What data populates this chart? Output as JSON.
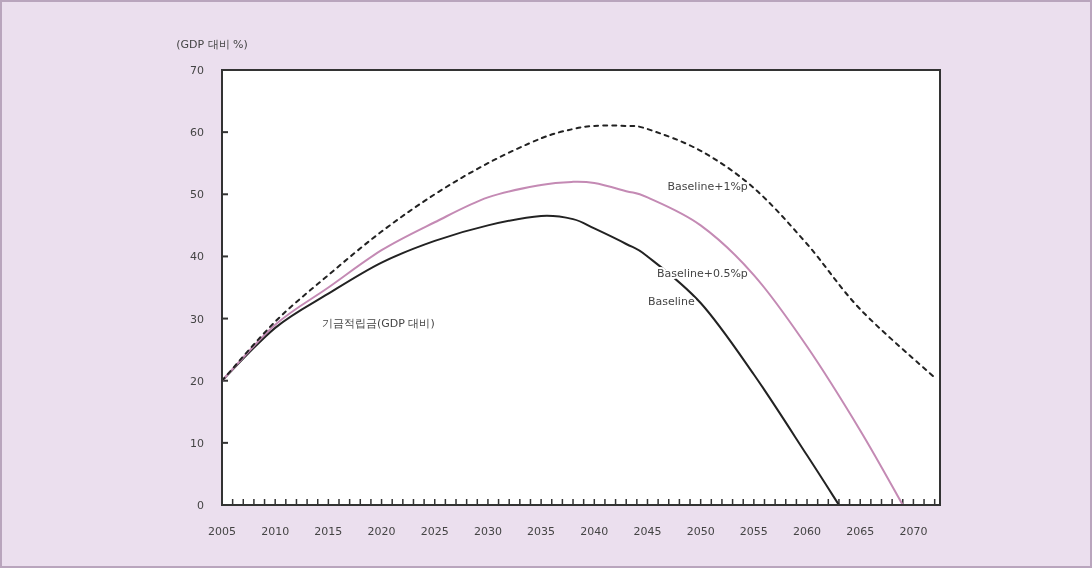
{
  "chart_data": {
    "type": "line",
    "ylabel": "(GDP 대비 %)",
    "x": [
      2005,
      2010,
      2015,
      2020,
      2025,
      2030,
      2035,
      2038,
      2040,
      2043,
      2045,
      2050,
      2055,
      2060,
      2063,
      2065,
      2069,
      2072
    ],
    "series": [
      {
        "name": "Baseline",
        "color": "#222222",
        "line_style": "solid",
        "values": [
          20,
          28.5,
          34,
          39,
          42.5,
          45,
          46.5,
          46,
          44.5,
          42,
          40,
          32.5,
          21,
          8,
          0,
          null,
          null,
          null
        ]
      },
      {
        "name": "Baseline+0.5%p",
        "color": "#c48ab4",
        "line_style": "solid",
        "values": [
          20,
          29,
          35,
          41,
          45.5,
          49.5,
          51.5,
          52,
          51.8,
          50.5,
          49.5,
          45,
          37,
          25.5,
          null,
          12,
          0,
          null
        ]
      },
      {
        "name": "Baseline+1%p",
        "color": "#222222",
        "line_style": "dashed",
        "values": [
          20,
          29.5,
          37,
          44,
          50,
          55,
          59,
          60.5,
          61,
          61,
          60.5,
          57,
          51,
          42,
          null,
          31.5,
          null,
          20.5
        ]
      }
    ],
    "xlim": [
      2005,
      2072.5
    ],
    "ylim": [
      0,
      70
    ],
    "xticks": [
      2005,
      2010,
      2015,
      2020,
      2025,
      2030,
      2035,
      2040,
      2045,
      2050,
      2055,
      2060,
      2065,
      2070
    ],
    "yticks": [
      0,
      10,
      20,
      30,
      40,
      50,
      60,
      70
    ],
    "grid": false,
    "marker": "none",
    "annotations": [
      "기금적립금(GDP 대비)"
    ]
  }
}
